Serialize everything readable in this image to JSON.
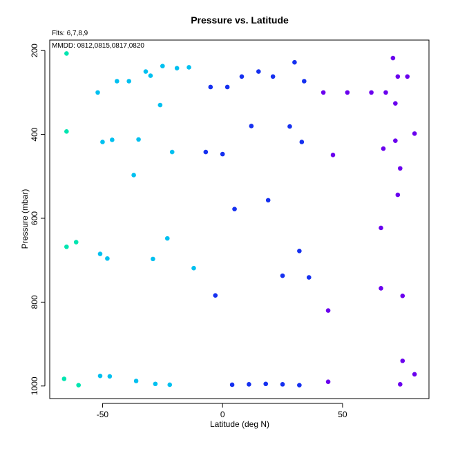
{
  "chart_data": {
    "type": "scatter",
    "title": "Pressure vs. Latitude",
    "xlabel": "Latitude (deg N)",
    "ylabel": "Pressure (mbar)",
    "xlim": [
      -72,
      86
    ],
    "ylim": [
      1030,
      175
    ],
    "y_reversed": true,
    "xticks": [
      -50,
      0,
      50
    ],
    "yticks": [
      200,
      400,
      600,
      800,
      1000
    ],
    "grid": false,
    "legend": "none",
    "annotations": [
      "Flts: 6,7,8,9",
      "MMDD: 0812,0815,0817,0820"
    ],
    "series": [
      {
        "color": "#00e5b0",
        "points": [
          [
            -65,
            207
          ],
          [
            -65,
            393
          ],
          [
            -65,
            668
          ],
          [
            -61,
            657
          ],
          [
            -66,
            983
          ],
          [
            -60,
            998
          ]
        ]
      },
      {
        "color": "#00c0f0",
        "points": [
          [
            -52,
            300
          ],
          [
            -44,
            273
          ],
          [
            -39,
            273
          ],
          [
            -32,
            250
          ],
          [
            -30,
            260
          ],
          [
            -25,
            237
          ],
          [
            -19,
            242
          ],
          [
            -14,
            240
          ],
          [
            -26,
            330
          ],
          [
            -50,
            418
          ],
          [
            -46,
            413
          ],
          [
            -35,
            412
          ],
          [
            -21,
            442
          ],
          [
            -37,
            497
          ],
          [
            -51,
            685
          ],
          [
            -48,
            696
          ],
          [
            -23,
            648
          ],
          [
            -29,
            697
          ],
          [
            -12,
            719
          ],
          [
            -51,
            976
          ],
          [
            -47,
            977
          ],
          [
            -36,
            988
          ],
          [
            -28,
            995
          ],
          [
            -22,
            997
          ]
        ]
      },
      {
        "color": "#1530f0",
        "points": [
          [
            -5,
            287
          ],
          [
            2,
            287
          ],
          [
            8,
            262
          ],
          [
            15,
            250
          ],
          [
            21,
            262
          ],
          [
            30,
            228
          ],
          [
            34,
            273
          ],
          [
            12,
            380
          ],
          [
            28,
            381
          ],
          [
            33,
            418
          ],
          [
            -7,
            442
          ],
          [
            0,
            447
          ],
          [
            19,
            557
          ],
          [
            5,
            578
          ],
          [
            32,
            678
          ],
          [
            25,
            737
          ],
          [
            36,
            741
          ],
          [
            -3,
            784
          ],
          [
            4,
            997
          ],
          [
            11,
            996
          ],
          [
            18,
            995
          ],
          [
            25,
            996
          ],
          [
            32,
            998
          ]
        ]
      },
      {
        "color": "#6a00ee",
        "points": [
          [
            42,
            300
          ],
          [
            52,
            300
          ],
          [
            62,
            300
          ],
          [
            68,
            300
          ],
          [
            71,
            218
          ],
          [
            73,
            262
          ],
          [
            77,
            262
          ],
          [
            72,
            326
          ],
          [
            80,
            398
          ],
          [
            72,
            415
          ],
          [
            67,
            434
          ],
          [
            46,
            449
          ],
          [
            74,
            481
          ],
          [
            73,
            544
          ],
          [
            66,
            623
          ],
          [
            66,
            767
          ],
          [
            75,
            785
          ],
          [
            44,
            820
          ],
          [
            75,
            940
          ],
          [
            80,
            972
          ],
          [
            44,
            990
          ],
          [
            74,
            996
          ]
        ]
      }
    ]
  }
}
